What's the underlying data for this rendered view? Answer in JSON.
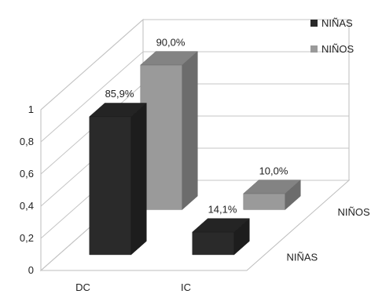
{
  "chart_data": {
    "type": "bar",
    "subtype": "3d-clustered",
    "categories": [
      "DC",
      "IC"
    ],
    "series": [
      {
        "name": "NIÑAS",
        "values": [
          0.859,
          0.141
        ],
        "labels": [
          "85,9%",
          "14,1%"
        ],
        "color": "#2a2a2a"
      },
      {
        "name": "NIÑOS",
        "values": [
          0.9,
          0.1
        ],
        "labels": [
          "90,0%",
          "10,0%"
        ],
        "color": "#9a9a9a"
      }
    ],
    "y_ticks": [
      "0",
      "0,2",
      "0,4",
      "0,6",
      "0,8",
      "1"
    ],
    "ylim": [
      0,
      1
    ],
    "grid": true,
    "legend_position": "top-right",
    "depth_axis_labels": [
      "NIÑAS",
      "NIÑOS"
    ]
  }
}
